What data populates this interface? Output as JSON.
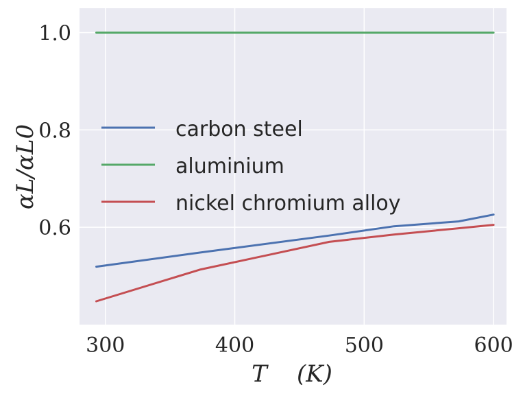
{
  "chart_data": {
    "type": "line",
    "xlabel": "T    (K)",
    "ylabel": "αL/αL0",
    "xlim": [
      280,
      610
    ],
    "ylim": [
      0.4,
      1.05
    ],
    "grid": true,
    "legend_position": "center-left",
    "xticks": [
      300,
      400,
      500,
      600
    ],
    "yticks": [
      0.6,
      0.8,
      1.0
    ],
    "xtick_labels": [
      "300",
      "400",
      "500",
      "600"
    ],
    "ytick_labels": [
      "0.6",
      "0.8",
      "1.0"
    ],
    "series": [
      {
        "name": "carbon steel",
        "color": "#4c72b0",
        "x": [
          293,
          373,
          473,
          523,
          573,
          600
        ],
        "y": [
          0.519,
          0.548,
          0.583,
          0.602,
          0.612,
          0.626
        ]
      },
      {
        "name": "aluminium",
        "color": "#55a868",
        "x": [
          293,
          600
        ],
        "y": [
          1.0,
          1.0
        ]
      },
      {
        "name": "nickel chromium alloy",
        "color": "#c44e52",
        "x": [
          293,
          373,
          473,
          523,
          573,
          600
        ],
        "y": [
          0.448,
          0.513,
          0.57,
          0.585,
          0.598,
          0.605
        ]
      }
    ]
  }
}
